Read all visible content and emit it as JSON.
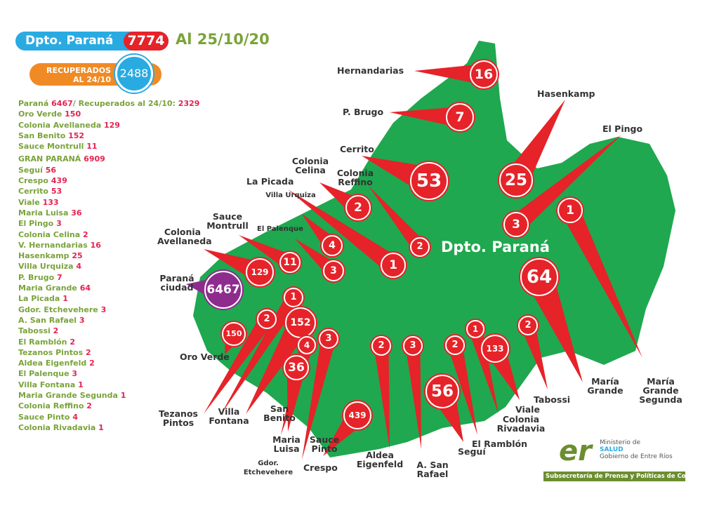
{
  "header": {
    "title": "Dpto. Paraná",
    "total": "7774",
    "date": "Al 25/10/20"
  },
  "recovered": {
    "label_line1": "RECUPERADOS",
    "label_line2": "AL 24/10",
    "value": "2488"
  },
  "list": [
    {
      "name": "Paraná",
      "value": "6467",
      "extra": "/ Recuperados al 24/10:",
      "extra_value": "2329"
    },
    {
      "name": "Oro Verde",
      "value": "150"
    },
    {
      "name": "Colonia Avellaneda",
      "value": "129"
    },
    {
      "name": "San Benito",
      "value": "152"
    },
    {
      "name": "Sauce Montrull",
      "value": "11"
    },
    {
      "name": "GRAN PARANÁ",
      "value": "6909"
    },
    {
      "name": "Seguí",
      "value": "56"
    },
    {
      "name": "Crespo",
      "value": "439"
    },
    {
      "name": "Cerrito",
      "value": "53"
    },
    {
      "name": "Viale",
      "value": "133"
    },
    {
      "name": "Maria Luisa",
      "value": "36"
    },
    {
      "name": "El Pingo",
      "value": "3"
    },
    {
      "name": "Colonia Celina",
      "value": "2"
    },
    {
      "name": "V. Hernandarias",
      "value": "16"
    },
    {
      "name": "Hasenkamp",
      "value": "25"
    },
    {
      "name": "Villa Urquiza",
      "value": "4"
    },
    {
      "name": "P. Brugo",
      "value": "7"
    },
    {
      "name": "Maria Grande",
      "value": "64"
    },
    {
      "name": "La Picada",
      "value": "1"
    },
    {
      "name": "Gdor. Etchevehere",
      "value": "3"
    },
    {
      "name": "A. San Rafael",
      "value": "3"
    },
    {
      "name": "Tabossi",
      "value": "2"
    },
    {
      "name": "El Ramblón",
      "value": "2"
    },
    {
      "name": "Tezanos Pintos",
      "value": "2"
    },
    {
      "name": "Aldea Eigenfeld",
      "value": "2"
    },
    {
      "name": "El Palenque",
      "value": "3"
    },
    {
      "name": "Villa Fontana",
      "value": "1"
    },
    {
      "name": "Maria Grande Segunda",
      "value": "1"
    },
    {
      "name": "Colonia Reffino",
      "value": "2"
    },
    {
      "name": "Sauce Pinto",
      "value": "4"
    },
    {
      "name": "Colonia Rivadavia",
      "value": "1"
    }
  ],
  "map": {
    "department_label": "Dpto. Paraná",
    "land_color": "#1fa84f",
    "marker_color": "#e52329",
    "city_color": "#8e2c8e",
    "markers": [
      {
        "label": "Hernandarias",
        "value": "16"
      },
      {
        "label": "P. Brugo",
        "value": "7"
      },
      {
        "label": "Cerrito",
        "value": "53"
      },
      {
        "label": "Hasenkamp",
        "value": "25"
      },
      {
        "label": "El Pingo",
        "value": "3"
      },
      {
        "label": "María Grande Segunda",
        "value": "1"
      },
      {
        "label": "María Grande",
        "value": "64"
      },
      {
        "label": "Colonia Celina",
        "value": "2"
      },
      {
        "label": "Colonia Reffino",
        "value": "2"
      },
      {
        "label": "La Picada",
        "value": "1"
      },
      {
        "label": "Villa Urquiza",
        "value": "4"
      },
      {
        "label": "El Palenque",
        "value": "3"
      },
      {
        "label": "Sauce Montrull",
        "value": "11"
      },
      {
        "label": "Colonia Avellaneda",
        "value": "129"
      },
      {
        "label": "Paraná ciudad",
        "value": "6467"
      },
      {
        "label": "Oro Verde",
        "value": "150"
      },
      {
        "label": "Tezanos Pintos",
        "value": "2"
      },
      {
        "label": "Villa Fontana",
        "value": "1"
      },
      {
        "label": "San Benito",
        "value": "152"
      },
      {
        "label": "Sauce Pinto",
        "value": "4"
      },
      {
        "label": "Maria Luisa",
        "value": "36"
      },
      {
        "label": "Gdor. Etchevehere",
        "value": "3"
      },
      {
        "label": "Crespo",
        "value": "439"
      },
      {
        "label": "Aldea Eigenfeld",
        "value": "2"
      },
      {
        "label": "A. San Rafael",
        "value": "3"
      },
      {
        "label": "Seguí",
        "value": "56"
      },
      {
        "label": "El Ramblón",
        "value": "2"
      },
      {
        "label": "Colonia Rivadavia",
        "value": "1"
      },
      {
        "label": "Viale",
        "value": "133"
      },
      {
        "label": "Tabossi",
        "value": "2"
      }
    ]
  },
  "logo": {
    "mark": "er",
    "line1": "Ministerio de",
    "line2": "SALUD",
    "line3": "Gobierno de Entre Ríos",
    "banner": "Subsecretaría de Prensa y Políticas de Comunicación"
  }
}
